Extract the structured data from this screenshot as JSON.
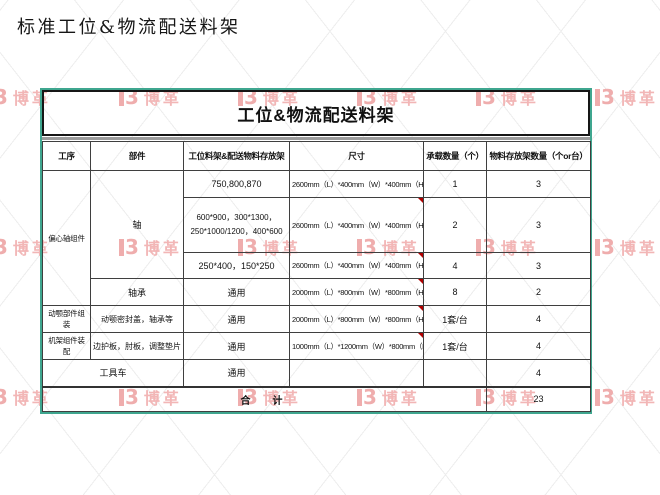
{
  "page_title": "标准工位&物流配送料架",
  "table": {
    "title": "工位&物流配送料架",
    "headers": {
      "c1": "工序",
      "c2": "部件",
      "c3": "工位料架&配送物料存放架",
      "c4": "尺寸",
      "c5": "承载数量（个）",
      "c6": "物料存放架数量（个or台）"
    },
    "merged": {
      "process_eccentric": "偏心轴组件",
      "part_shaft": "轴"
    },
    "rows": [
      {
        "rack": "750,800,870",
        "dim": "2600mm（L）*400mm（W）*400mm（H）",
        "load": "1",
        "qty": "3"
      },
      {
        "rack": "600*900，300*1300，250*1000/1200，400*600",
        "dim": "2600mm（L）*400mm（W）*400mm（H）",
        "load": "2",
        "qty": "3"
      },
      {
        "rack": "250*400，150*250",
        "dim": "2600mm（L）*400mm（W）*400mm（H）",
        "load": "4",
        "qty": "3"
      },
      {
        "part": "轴承",
        "rack": "通用",
        "dim": "2000mm（L）*800mm（W）*800mm（H）",
        "load": "8",
        "qty": "2"
      },
      {
        "process": "动颚部件组装",
        "part": "动颚密封盖，轴承等",
        "rack": "通用",
        "dim": "2000mm（L）*800mm（W）*800mm（H）",
        "load": "1套/台",
        "qty": "4"
      },
      {
        "process": "机架组件装配",
        "part": "边护板，肘板，调整垫片",
        "rack": "通用",
        "dim": "1000mm（L）*1200mm（W）*800mm（H）",
        "load": "1套/台",
        "qty": "4"
      },
      {
        "part": "工具车",
        "rack": "通用",
        "dim": "",
        "load": "",
        "qty": "4"
      }
    ],
    "total_label": "合　计",
    "total_value": "23"
  },
  "watermark": {
    "text": "博革"
  },
  "colors": {
    "table_border_accent": "#3fa68f",
    "watermark_pink": "#f2b6b6",
    "comment_marker_red": "#b00000"
  }
}
